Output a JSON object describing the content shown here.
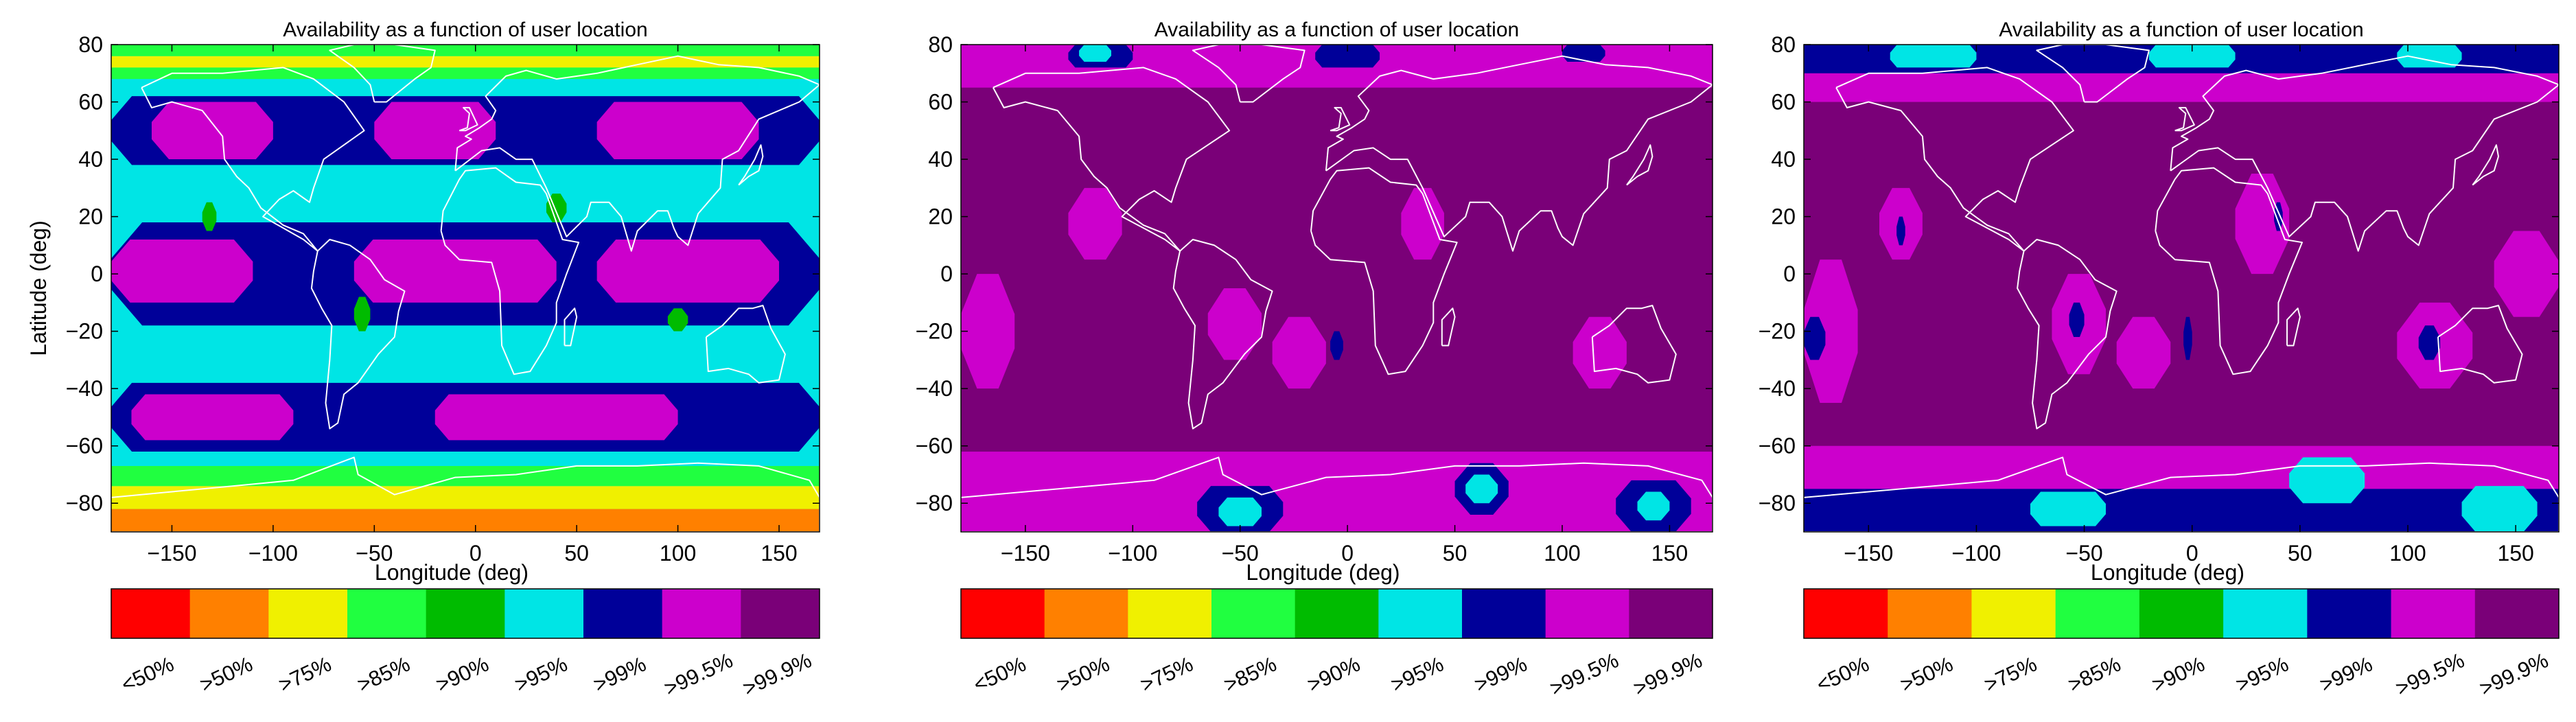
{
  "chart_data": [
    {
      "type": "heatmap",
      "title": "Availability as a function of user location",
      "xlabel": "Longitude (deg)",
      "ylabel": "Latitude (deg)",
      "xlim": [
        -180,
        170
      ],
      "ylim": [
        -90,
        80
      ],
      "xticks": [
        -150,
        -100,
        -50,
        0,
        50,
        100,
        150
      ],
      "yticks": [
        80,
        60,
        40,
        20,
        0,
        -20,
        -40,
        -60,
        -80
      ],
      "dominant_level": ">95%",
      "latitude_bands": [
        {
          "from": -90,
          "to": -82,
          "level": ">50%"
        },
        {
          "from": -82,
          "to": -74,
          "level": ">75%"
        },
        {
          "from": -74,
          "to": -67,
          "level": ">85%"
        },
        {
          "from": -67,
          "to": -60,
          "level": ">95%"
        },
        {
          "from": 62,
          "to": 68,
          "level": ">95%"
        },
        {
          "from": 68,
          "to": 72,
          "level": ">85%"
        },
        {
          "from": 72,
          "to": 76,
          "level": ">75%"
        },
        {
          "from": 76,
          "to": 80,
          "level": ">85%"
        }
      ],
      "regions": [
        {
          "level": ">99%",
          "lon": [
            -180,
            170
          ],
          "lat": [
            -62,
            -38
          ]
        },
        {
          "level": ">99.5%",
          "lon": [
            -170,
            -90
          ],
          "lat": [
            -58,
            -42
          ]
        },
        {
          "level": ">99.5%",
          "lon": [
            -20,
            100
          ],
          "lat": [
            -58,
            -42
          ]
        },
        {
          "level": ">99%",
          "lon": [
            -180,
            170
          ],
          "lat": [
            38,
            62
          ]
        },
        {
          "level": ">99.5%",
          "lon": [
            -160,
            -100
          ],
          "lat": [
            40,
            60
          ]
        },
        {
          "level": ">99.5%",
          "lon": [
            -50,
            10
          ],
          "lat": [
            40,
            60
          ]
        },
        {
          "level": ">99.5%",
          "lon": [
            60,
            140
          ],
          "lat": [
            40,
            60
          ]
        },
        {
          "level": ">99%",
          "lon": [
            -180,
            170
          ],
          "lat": [
            -18,
            18
          ]
        },
        {
          "level": ">99.5%",
          "lon": [
            -180,
            -110
          ],
          "lat": [
            -10,
            12
          ]
        },
        {
          "level": ">99.5%",
          "lon": [
            -60,
            40
          ],
          "lat": [
            -10,
            12
          ]
        },
        {
          "level": ">99.5%",
          "lon": [
            60,
            150
          ],
          "lat": [
            -10,
            12
          ]
        },
        {
          "level": ">90%",
          "lon": [
            -135,
            -128
          ],
          "lat": [
            15,
            25
          ]
        },
        {
          "level": ">90%",
          "lon": [
            -60,
            -52
          ],
          "lat": [
            -20,
            -8
          ]
        },
        {
          "level": ">90%",
          "lon": [
            35,
            45
          ],
          "lat": [
            18,
            28
          ]
        },
        {
          "level": ">90%",
          "lon": [
            95,
            105
          ],
          "lat": [
            -20,
            -12
          ]
        }
      ]
    },
    {
      "type": "heatmap",
      "title": "Availability as a function of user location",
      "xlabel": "Longitude (deg)",
      "ylabel": "",
      "xlim": [
        -180,
        170
      ],
      "ylim": [
        -90,
        80
      ],
      "xticks": [
        -150,
        -100,
        -50,
        0,
        50,
        100,
        150
      ],
      "yticks": [
        80,
        60,
        40,
        20,
        0,
        -20,
        -40,
        -60,
        -80
      ],
      "dominant_level": ">99.9%",
      "latitude_bands": [
        {
          "from": -90,
          "to": -62,
          "level": ">99.5%"
        },
        {
          "from": 65,
          "to": 80,
          "level": ">99.5%"
        }
      ],
      "regions": [
        {
          "level": ">99.5%",
          "lon": [
            -180,
            -155
          ],
          "lat": [
            -40,
            0
          ]
        },
        {
          "level": ">99.5%",
          "lon": [
            -130,
            -105
          ],
          "lat": [
            5,
            30
          ]
        },
        {
          "level": ">99.5%",
          "lon": [
            -65,
            -40
          ],
          "lat": [
            -30,
            -5
          ]
        },
        {
          "level": ">99.5%",
          "lon": [
            -35,
            -10
          ],
          "lat": [
            -40,
            -15
          ]
        },
        {
          "level": ">99.5%",
          "lon": [
            25,
            45
          ],
          "lat": [
            5,
            30
          ]
        },
        {
          "level": ">99.5%",
          "lon": [
            105,
            130
          ],
          "lat": [
            -40,
            -15
          ]
        },
        {
          "level": ">99%",
          "lon": [
            -8,
            -2
          ],
          "lat": [
            -30,
            -20
          ]
        },
        {
          "level": ">99%",
          "lon": [
            -130,
            -100
          ],
          "lat": [
            72,
            80
          ]
        },
        {
          "level": ">95%",
          "lon": [
            -125,
            -110
          ],
          "lat": [
            74,
            80
          ]
        },
        {
          "level": ">99%",
          "lon": [
            -15,
            15
          ],
          "lat": [
            72,
            80
          ]
        },
        {
          "level": ">99%",
          "lon": [
            100,
            120
          ],
          "lat": [
            74,
            80
          ]
        },
        {
          "level": ">99%",
          "lon": [
            -70,
            -30
          ],
          "lat": [
            -90,
            -74
          ]
        },
        {
          "level": ">95%",
          "lon": [
            -60,
            -40
          ],
          "lat": [
            -88,
            -78
          ]
        },
        {
          "level": ">99%",
          "lon": [
            50,
            75
          ],
          "lat": [
            -84,
            -66
          ]
        },
        {
          "level": ">95%",
          "lon": [
            55,
            70
          ],
          "lat": [
            -80,
            -70
          ]
        },
        {
          "level": ">99%",
          "lon": [
            125,
            160
          ],
          "lat": [
            -90,
            -72
          ]
        },
        {
          "level": ">95%",
          "lon": [
            135,
            150
          ],
          "lat": [
            -86,
            -76
          ]
        }
      ]
    },
    {
      "type": "heatmap",
      "title": "Availability as a function of user location",
      "xlabel": "Longitude (deg)",
      "ylabel": "",
      "xlim": [
        -180,
        170
      ],
      "ylim": [
        -90,
        80
      ],
      "xticks": [
        -150,
        -100,
        -50,
        0,
        50,
        100,
        150
      ],
      "yticks": [
        80,
        60,
        40,
        20,
        0,
        -20,
        -40,
        -60,
        -80
      ],
      "dominant_level": ">99.9%",
      "latitude_bands": [
        {
          "from": -90,
          "to": -60,
          "level": ">99.5%"
        },
        {
          "from": -90,
          "to": -75,
          "level": ">99%"
        },
        {
          "from": 60,
          "to": 80,
          "level": ">99.5%"
        },
        {
          "from": 70,
          "to": 80,
          "level": ">99%"
        }
      ],
      "regions": [
        {
          "level": ">99.5%",
          "lon": [
            -180,
            -155
          ],
          "lat": [
            -45,
            5
          ]
        },
        {
          "level": ">99%",
          "lon": [
            -180,
            -170
          ],
          "lat": [
            -30,
            -15
          ]
        },
        {
          "level": ">99.5%",
          "lon": [
            -145,
            -125
          ],
          "lat": [
            5,
            30
          ]
        },
        {
          "level": ">99%",
          "lon": [
            -137,
            -133
          ],
          "lat": [
            10,
            20
          ]
        },
        {
          "level": ">99.5%",
          "lon": [
            -65,
            -40
          ],
          "lat": [
            -35,
            0
          ]
        },
        {
          "level": ">99%",
          "lon": [
            -57,
            -50
          ],
          "lat": [
            -22,
            -10
          ]
        },
        {
          "level": ">99.5%",
          "lon": [
            -35,
            -10
          ],
          "lat": [
            -40,
            -15
          ]
        },
        {
          "level": ">99%",
          "lon": [
            -4,
            0
          ],
          "lat": [
            -30,
            -15
          ]
        },
        {
          "level": ">99.5%",
          "lon": [
            20,
            45
          ],
          "lat": [
            0,
            35
          ]
        },
        {
          "level": ">99%",
          "lon": [
            38,
            42
          ],
          "lat": [
            15,
            25
          ]
        },
        {
          "level": ">99.5%",
          "lon": [
            95,
            130
          ],
          "lat": [
            -40,
            -10
          ]
        },
        {
          "level": ">99%",
          "lon": [
            105,
            115
          ],
          "lat": [
            -30,
            -18
          ]
        },
        {
          "level": ">99.5%",
          "lon": [
            140,
            170
          ],
          "lat": [
            -15,
            15
          ]
        },
        {
          "level": ">95%",
          "lon": [
            -140,
            -100
          ],
          "lat": [
            72,
            80
          ]
        },
        {
          "level": ">95%",
          "lon": [
            -20,
            20
          ],
          "lat": [
            72,
            80
          ]
        },
        {
          "level": ">95%",
          "lon": [
            95,
            125
          ],
          "lat": [
            72,
            80
          ]
        },
        {
          "level": ">95%",
          "lon": [
            -75,
            -40
          ],
          "lat": [
            -88,
            -76
          ]
        },
        {
          "level": ">95%",
          "lon": [
            45,
            80
          ],
          "lat": [
            -80,
            -64
          ]
        },
        {
          "level": ">95%",
          "lon": [
            125,
            160
          ],
          "lat": [
            -90,
            -74
          ]
        }
      ]
    }
  ],
  "colorbar": {
    "labels": [
      "<50%",
      ">50%",
      ">75%",
      ">85%",
      ">90%",
      ">95%",
      ">99%",
      ">99.5%",
      ">99.9%"
    ],
    "colors": [
      "#ff0000",
      "#ff8000",
      "#f0f000",
      "#20ff40",
      "#00bb00",
      "#00e5e5",
      "#000099",
      "#cc00cc",
      "#7a0078"
    ]
  },
  "map_outline_color": "#ffffff"
}
